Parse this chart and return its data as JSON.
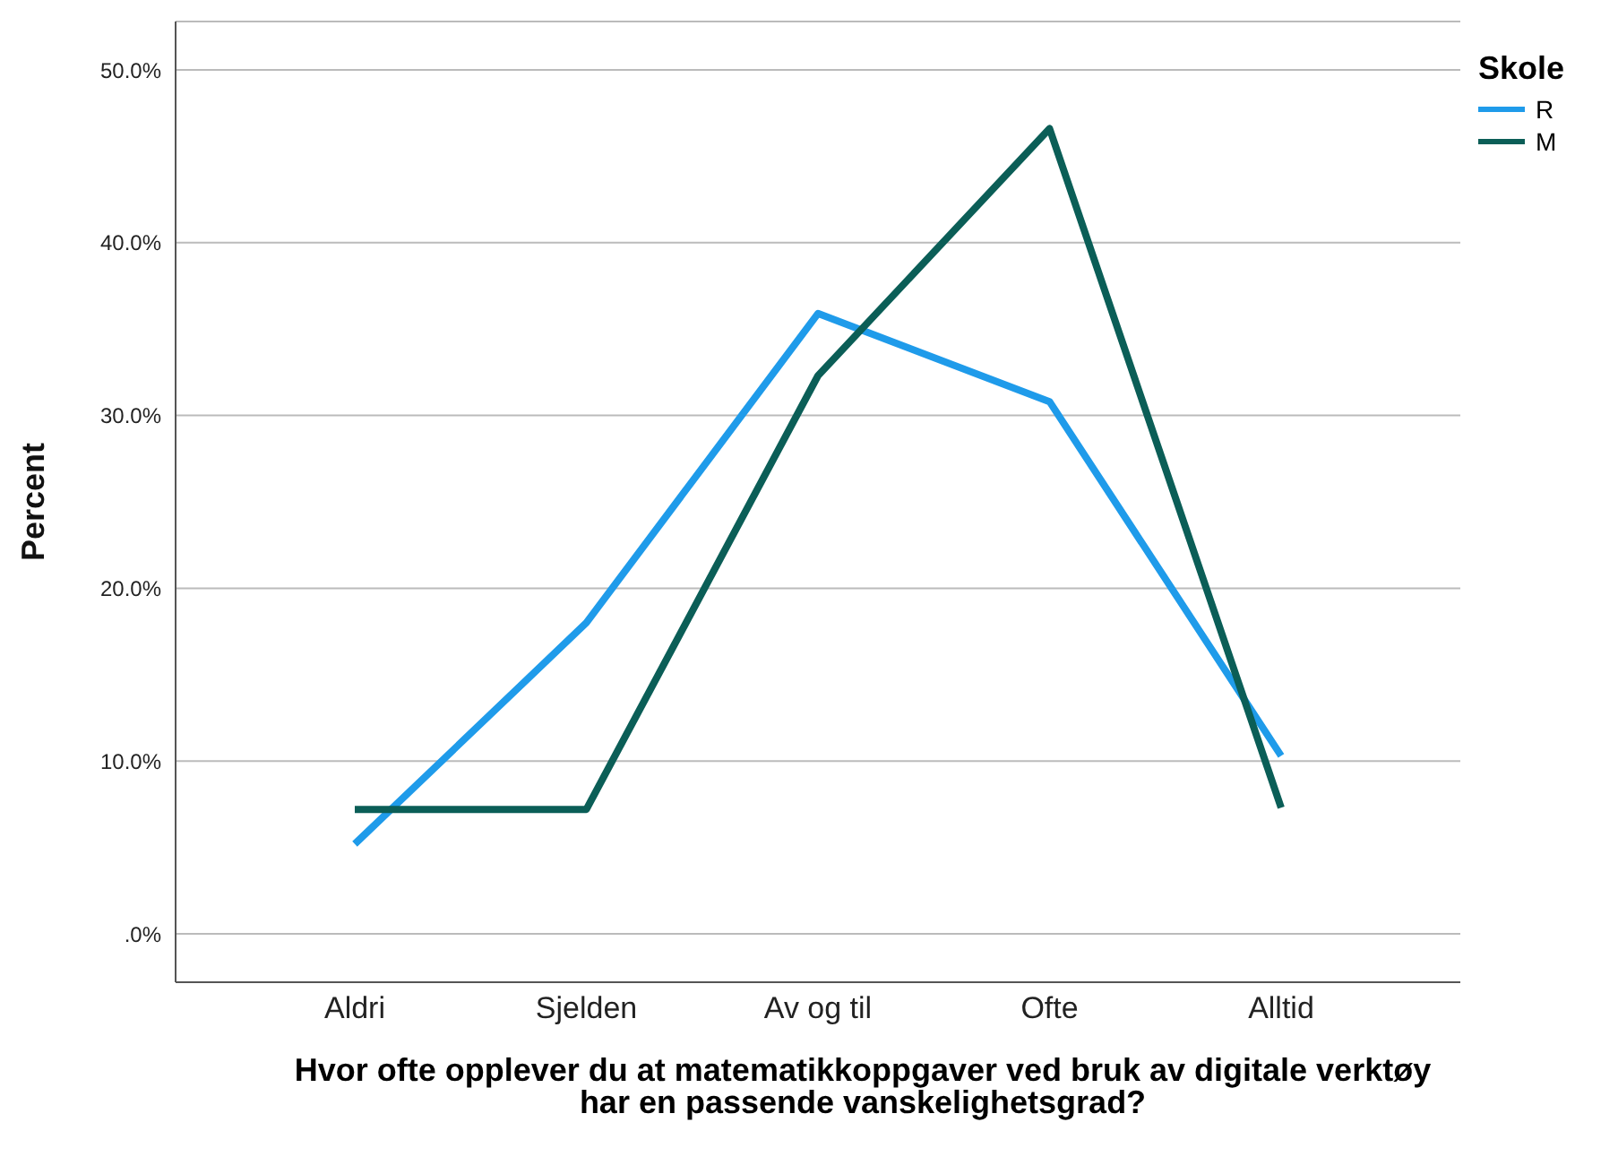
{
  "chart_data": {
    "type": "line",
    "xlabel": "Hvor ofte opplever du at matematikkoppgaver ved bruk av digitale verktøy har en passende vanskelighetsgrad?",
    "ylabel": "Percent",
    "legend_title": "Skole",
    "categories": [
      "Aldri",
      "Sjelden",
      "Av og til",
      "Ofte",
      "Alltid"
    ],
    "series": [
      {
        "name": "R",
        "color": "#1f9bea",
        "values": [
          5.2,
          18.0,
          35.9,
          30.8,
          10.3
        ]
      },
      {
        "name": "M",
        "color": "#0b5e57",
        "values": [
          7.2,
          7.2,
          32.3,
          46.6,
          7.3
        ]
      }
    ],
    "ylim": [
      -2.8,
      52.8
    ],
    "yticks": [
      {
        "value": 0,
        "label": ".0%"
      },
      {
        "value": 10,
        "label": "10.0%"
      },
      {
        "value": 20,
        "label": "20.0%"
      },
      {
        "value": 30,
        "label": "30.0%"
      },
      {
        "value": 40,
        "label": "40.0%"
      },
      {
        "value": 50,
        "label": "50.0%"
      }
    ],
    "grid": "y",
    "legend": "top right",
    "marker": "none",
    "line_style": "solid"
  }
}
